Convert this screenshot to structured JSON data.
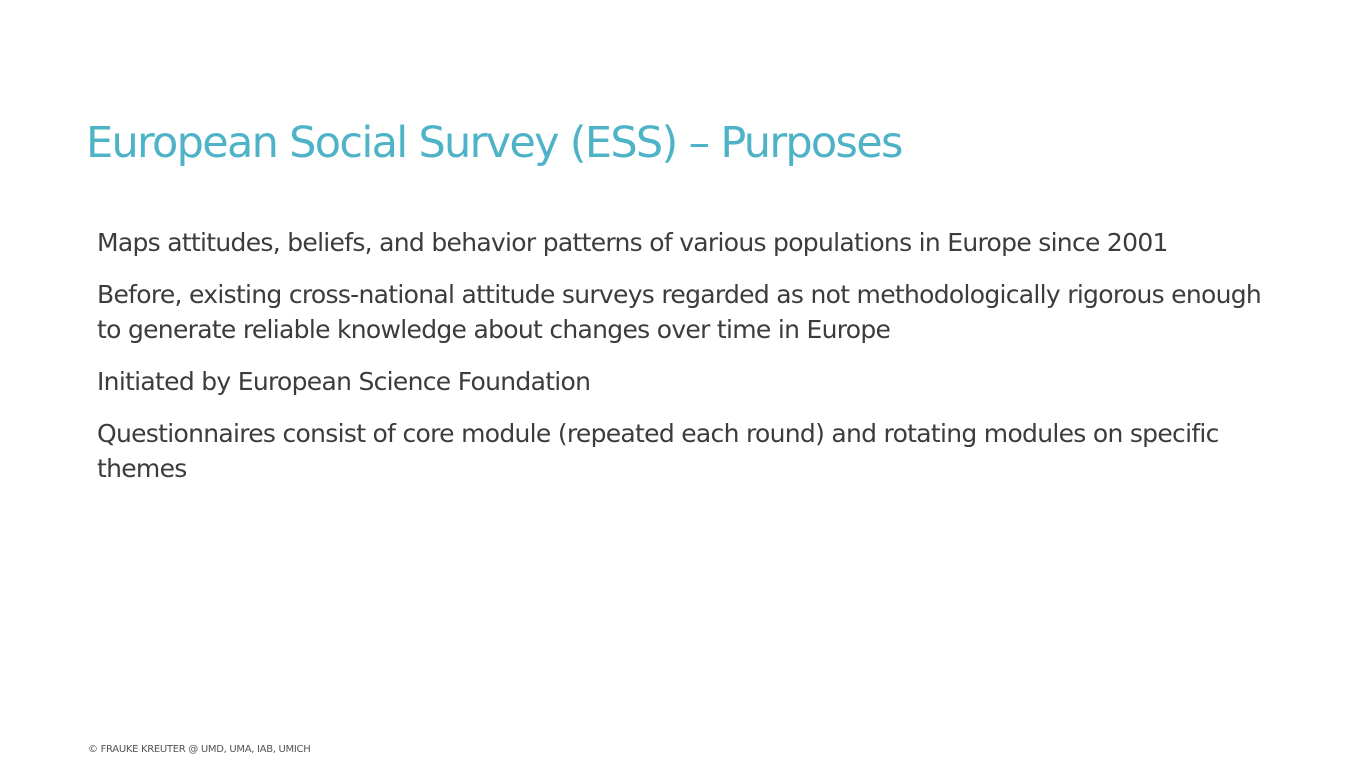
{
  "slide": {
    "title": "European Social Survey (ESS) – Purposes",
    "bullets": [
      "Maps attitudes, beliefs, and behavior patterns of various populations in Europe since 2001",
      "Before, existing cross-national attitude surveys regarded as not methodologically rigorous enough to generate reliable knowledge about changes over time in Europe",
      "Initiated by European Science Foundation",
      "Questionnaires consist of core module (repeated each round) and rotating modules on specific themes"
    ],
    "footer": "© FRAUKE KREUTER @ UMD, UMA, IAB,  UMICH",
    "colors": {
      "title": "#4fb3c7",
      "body_text": "#3c3c3c",
      "background": "#ffffff"
    }
  }
}
